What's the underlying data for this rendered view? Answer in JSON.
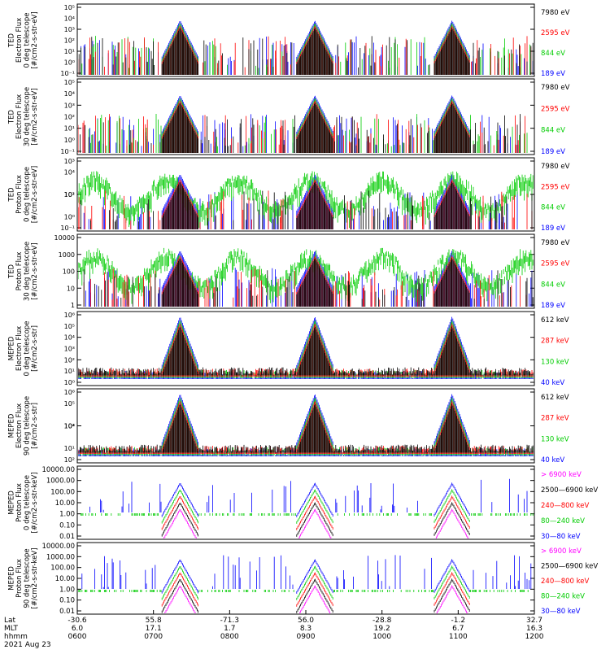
{
  "chart_data": [
    {
      "type": "line",
      "ylabel": [
        "TED",
        "Electron Flux",
        "0 deg telescope",
        "[#/cm2-s-str-eV]"
      ],
      "ytick_labels": [
        "10⁻¹",
        "10¹",
        "10³",
        "10⁵"
      ],
      "ytick_labels_minor": [
        "10⁰",
        "10²",
        "10⁴"
      ],
      "series": [
        {
          "name": "7980 eV",
          "color": "#000000"
        },
        {
          "name": "2595 eV",
          "color": "#ff0000"
        },
        {
          "name": "844 eV",
          "color": "#00cc00"
        },
        {
          "name": "189 eV",
          "color": "#0000ff"
        }
      ]
    },
    {
      "type": "line",
      "ylabel": [
        "TED",
        "Electron Flux",
        "30 deg telescope",
        "[#/cm2-s-str-eV]"
      ],
      "ytick_labels": [
        "10⁻¹",
        "10¹",
        "10³",
        "10⁵"
      ],
      "ytick_labels_minor": [
        "10⁰",
        "10²",
        "10⁴"
      ],
      "series": [
        {
          "name": "7980 eV",
          "color": "#000000"
        },
        {
          "name": "2595 eV",
          "color": "#ff0000"
        },
        {
          "name": "844 eV",
          "color": "#00cc00"
        },
        {
          "name": "189 eV",
          "color": "#0000ff"
        }
      ]
    },
    {
      "type": "line",
      "ylabel": [
        "TED",
        "Proton Flux",
        "0 deg telescope",
        "[#/cm2-s-str-eV]"
      ],
      "ytick_labels": [
        "10⁻¹",
        "10¹",
        "10³"
      ],
      "ytick_labels_minor": [
        "10⁰",
        "10²",
        "10⁴"
      ],
      "series": [
        {
          "name": "7980 eV",
          "color": "#000000"
        },
        {
          "name": "2595 eV",
          "color": "#ff0000"
        },
        {
          "name": "844 eV",
          "color": "#00cc00"
        },
        {
          "name": "189 eV",
          "color": "#0000ff"
        }
      ]
    },
    {
      "type": "line",
      "ylabel": [
        "TED",
        "Proton Flux",
        "30 deg telescope",
        "[#/cm2-s-str-eV]"
      ],
      "ytick_labels": [
        "10000",
        "1000",
        "100",
        "10",
        "1"
      ],
      "series": [
        {
          "name": "7980 eV",
          "color": "#000000"
        },
        {
          "name": "2595 eV",
          "color": "#ff0000"
        },
        {
          "name": "844 eV",
          "color": "#00cc00"
        },
        {
          "name": "189 eV",
          "color": "#0000ff"
        }
      ]
    },
    {
      "type": "line",
      "ylabel": [
        "MEPED",
        "Electron Flux",
        "0 deg telescope",
        "[#/cm2-s-str]"
      ],
      "ytick_labels": [
        "10⁶",
        "10⁴",
        "10²",
        "10⁰"
      ],
      "ytick_labels_minor": [
        "10⁵",
        "10³",
        "10¹"
      ],
      "series": [
        {
          "name": "612 keV",
          "color": "#000000"
        },
        {
          "name": "287 keV",
          "color": "#ff0000"
        },
        {
          "name": "130 keV",
          "color": "#00cc00"
        },
        {
          "name": "40 keV",
          "color": "#0000ff"
        }
      ]
    },
    {
      "type": "line",
      "ylabel": [
        "MEPED",
        "Electron Flux",
        "90 deg telescope",
        "[#/cm2-s-str]"
      ],
      "ytick_labels": [
        "10⁶",
        "10⁴",
        "10²"
      ],
      "ytick_labels_minor": [
        "10⁵",
        "10³",
        "10¹"
      ],
      "series": [
        {
          "name": "612 keV",
          "color": "#000000"
        },
        {
          "name": "287 keV",
          "color": "#ff0000"
        },
        {
          "name": "130 keV",
          "color": "#00cc00"
        },
        {
          "name": "40 keV",
          "color": "#0000ff"
        }
      ]
    },
    {
      "type": "line",
      "ylabel": [
        "MEPED",
        "Proton Flux",
        "0 deg telescope",
        "[#/cm2-s-str-keV]"
      ],
      "ytick_labels": [
        "10000.00",
        "1000.00",
        "100.00",
        "10.00",
        "1.00",
        "0.10",
        "0.01"
      ],
      "series": [
        {
          "name": "> 6900 keV",
          "color": "#ff00ff"
        },
        {
          "name": "2500—6900 keV",
          "color": "#000000"
        },
        {
          "name": "240—800 keV",
          "color": "#ff0000"
        },
        {
          "name": "80—240 keV",
          "color": "#00cc00"
        },
        {
          "name": "30—80 keV",
          "color": "#0000ff"
        }
      ]
    },
    {
      "type": "line",
      "ylabel": [
        "MEPED",
        "Proton Flux",
        "90 deg telescope",
        "[#/cm2-s-str-keV]"
      ],
      "ytick_labels": [
        "10000.00",
        "1000.00",
        "100.00",
        "10.00",
        "1.00",
        "0.10",
        "0.01"
      ],
      "series": [
        {
          "name": "> 6900 keV",
          "color": "#ff00ff"
        },
        {
          "name": "2500—6900 keV",
          "color": "#000000"
        },
        {
          "name": "240—800 keV",
          "color": "#ff0000"
        },
        {
          "name": "80—240 keV",
          "color": "#00cc00"
        },
        {
          "name": "30—80 keV",
          "color": "#0000ff"
        }
      ]
    }
  ],
  "x_axis": {
    "row_labels": [
      "Lat",
      "MLT",
      "hhmm",
      "2021 Aug 23"
    ],
    "ticks": [
      {
        "lat": "-30.6",
        "mlt": "6.0",
        "hhmm": "0600"
      },
      {
        "lat": "55.8",
        "mlt": "17.1",
        "hhmm": "0700"
      },
      {
        "lat": "-71.3",
        "mlt": "1.7",
        "hhmm": "0800"
      },
      {
        "lat": "56.0",
        "mlt": "8.3",
        "hhmm": "0900"
      },
      {
        "lat": "-28.8",
        "mlt": "19.2",
        "hhmm": "1000"
      },
      {
        "lat": "-1.2",
        "mlt": "6.7",
        "hhmm": "1100"
      },
      {
        "lat": "32.7",
        "mlt": "16.3",
        "hhmm": "1200"
      }
    ]
  }
}
